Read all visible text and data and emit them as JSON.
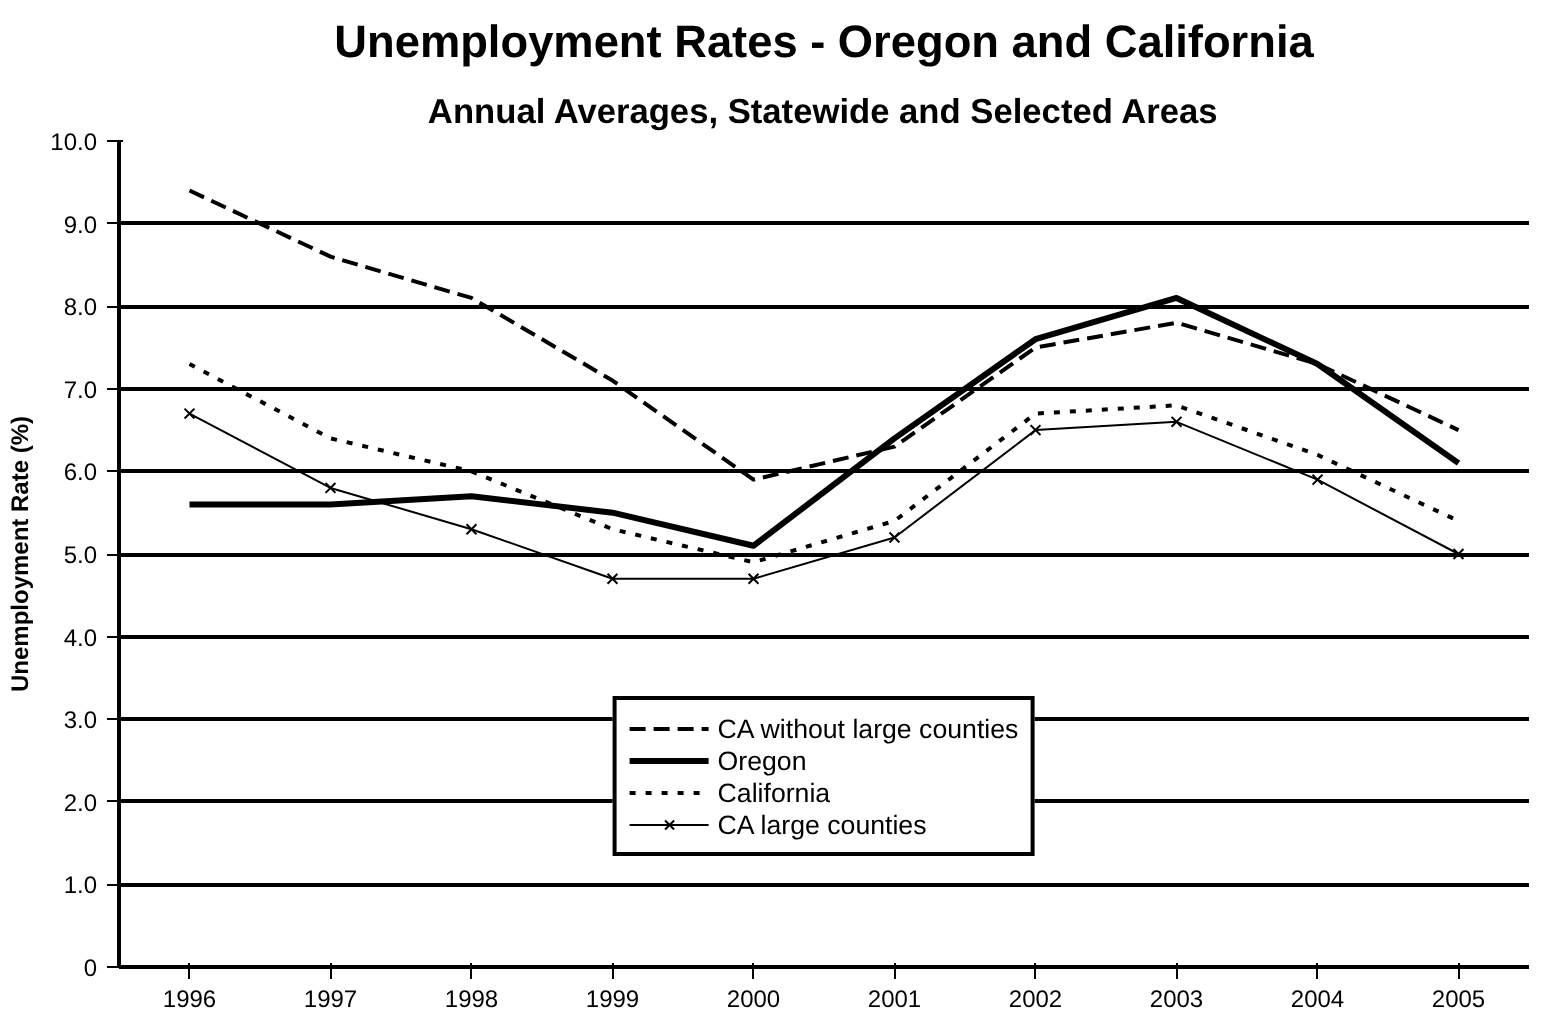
{
  "chart_data": {
    "type": "line",
    "title": "Unemployment Rates - Oregon and California",
    "subtitle": "Annual Averages, Statewide and Selected Areas",
    "ylabel": "Unemployment Rate (%)",
    "categories": [
      "1996",
      "1997",
      "1998",
      "1999",
      "2000",
      "2001",
      "2002",
      "2003",
      "2004",
      "2005"
    ],
    "series": [
      {
        "name": "CA without large counties",
        "color": "#000000",
        "line_style": "dashed",
        "marker": "none",
        "values": [
          9.4,
          8.6,
          8.1,
          7.1,
          5.9,
          6.3,
          7.5,
          7.8,
          7.3,
          6.5
        ]
      },
      {
        "name": "Oregon",
        "color": "#000000",
        "line_style": "solid",
        "marker": "none",
        "values": [
          5.6,
          5.6,
          5.7,
          5.5,
          5.1,
          6.4,
          7.6,
          8.1,
          7.3,
          6.1
        ]
      },
      {
        "name": "California",
        "color": "#000000",
        "line_style": "dotted",
        "marker": "none",
        "values": [
          7.3,
          6.4,
          6.0,
          5.3,
          4.9,
          5.4,
          6.7,
          6.8,
          6.2,
          5.4
        ]
      },
      {
        "name": "CA large counties",
        "color": "#000000",
        "line_style": "solid",
        "marker": "cross",
        "values": [
          6.7,
          5.8,
          5.3,
          4.7,
          4.7,
          5.2,
          6.5,
          6.6,
          5.9,
          5.0
        ]
      }
    ],
    "ylim": [
      0,
      10
    ],
    "yticks": [
      0,
      {
        "value": 1,
        "label": "1.0"
      },
      {
        "value": 2,
        "label": "2.0"
      },
      {
        "value": 3,
        "label": "3.0"
      },
      {
        "value": 4,
        "label": "4.0"
      },
      {
        "value": 5,
        "label": "5.0"
      },
      {
        "value": 6,
        "label": "6.0"
      },
      {
        "value": 7,
        "label": "7.0"
      },
      {
        "value": 8,
        "label": "8.0"
      },
      {
        "value": 9,
        "label": "9.0"
      },
      {
        "value": 10,
        "label": "10.0"
      }
    ],
    "grid": "y",
    "legend": "bottom"
  }
}
